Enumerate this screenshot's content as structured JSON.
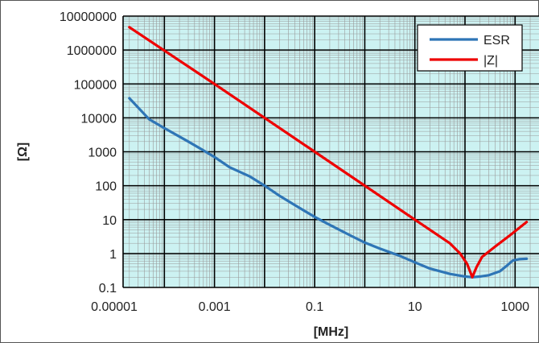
{
  "chart_data": {
    "type": "line",
    "xscale": "log",
    "yscale": "log",
    "xlim": [
      1.5e-05,
      3000
    ],
    "ylim": [
      0.1,
      10000000
    ],
    "xlabel": "[MHz]",
    "ylabel": "[Ω]",
    "x_tick_values": [
      1e-05,
      0.001,
      0.1,
      10,
      1000
    ],
    "x_tick_labels": [
      "0.00001",
      "0.001",
      "0.1",
      "10",
      "1000"
    ],
    "y_tick_values": [
      0.1,
      1,
      10,
      100,
      1000,
      10000,
      100000,
      1000000,
      10000000
    ],
    "y_tick_labels": [
      "0.1",
      "1",
      "10",
      "100",
      "1000",
      "10000",
      "100000",
      "1000000",
      "10000000"
    ],
    "grid": true,
    "legend_position": "top-right",
    "background_color": "#ccf2f2",
    "series": [
      {
        "name": "ESR",
        "color": "#2e75b6",
        "points": [
          [
            2e-05,
            38000
          ],
          [
            5e-05,
            9000
          ],
          [
            0.0001,
            5000
          ],
          [
            0.0003,
            2000
          ],
          [
            0.0006,
            1100
          ],
          [
            0.001,
            700
          ],
          [
            0.002,
            350
          ],
          [
            0.005,
            190
          ],
          [
            0.01,
            100
          ],
          [
            0.02,
            50
          ],
          [
            0.05,
            22
          ],
          [
            0.1,
            12
          ],
          [
            0.2,
            7
          ],
          [
            0.5,
            3.5
          ],
          [
            1,
            2.1
          ],
          [
            2,
            1.4
          ],
          [
            5,
            0.85
          ],
          [
            10,
            0.55
          ],
          [
            20,
            0.36
          ],
          [
            50,
            0.25
          ],
          [
            100,
            0.21
          ],
          [
            140,
            0.2
          ],
          [
            200,
            0.21
          ],
          [
            300,
            0.23
          ],
          [
            500,
            0.3
          ],
          [
            700,
            0.45
          ],
          [
            900,
            0.62
          ],
          [
            1200,
            0.68
          ],
          [
            1700,
            0.7
          ]
        ]
      },
      {
        "name": "|Z|",
        "color": "#ee0000",
        "points": [
          [
            2e-05,
            4700000
          ],
          [
            0.001,
            100000
          ],
          [
            0.1,
            1000
          ],
          [
            10,
            10
          ],
          [
            50,
            2
          ],
          [
            80,
            1
          ],
          [
            110,
            0.5
          ],
          [
            140,
            0.2
          ],
          [
            170,
            0.4
          ],
          [
            220,
            0.8
          ],
          [
            400,
            1.6
          ],
          [
            800,
            3.5
          ],
          [
            1700,
            8.5
          ]
        ]
      }
    ]
  }
}
